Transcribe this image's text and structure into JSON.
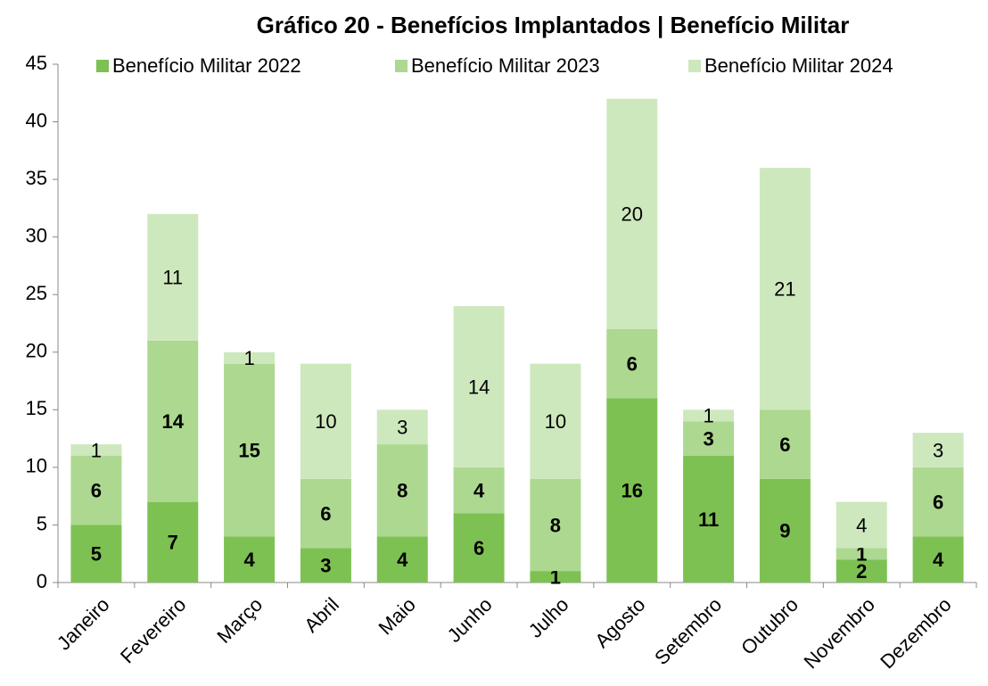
{
  "chart_data": {
    "type": "stacked_bar",
    "title": "Gráfico 20 - Benefícios Implantados | Benefício Militar",
    "categories": [
      "Janeiro",
      "Fevereiro",
      "Março",
      "Abril",
      "Maio",
      "Junho",
      "Julho",
      "Agosto",
      "Setembro",
      "Outubro",
      "Novembro",
      "Dezembro"
    ],
    "series": [
      {
        "name": "Benefício Militar 2022",
        "color": "#7dc153",
        "values": [
          5,
          7,
          4,
          3,
          4,
          6,
          1,
          16,
          11,
          9,
          2,
          4
        ]
      },
      {
        "name": "Benefício Militar 2023",
        "color": "#acd890",
        "values": [
          6,
          14,
          15,
          6,
          8,
          4,
          8,
          6,
          3,
          6,
          1,
          6
        ]
      },
      {
        "name": "Benefício Militar 2024",
        "color": "#cde8bd",
        "values": [
          1,
          11,
          1,
          10,
          3,
          14,
          10,
          20,
          1,
          21,
          4,
          3
        ]
      }
    ],
    "ylim": [
      0,
      45
    ],
    "yticks": [
      0,
      5,
      10,
      15,
      20,
      25,
      30,
      35,
      40,
      45
    ],
    "legend": "top",
    "grid": false
  }
}
